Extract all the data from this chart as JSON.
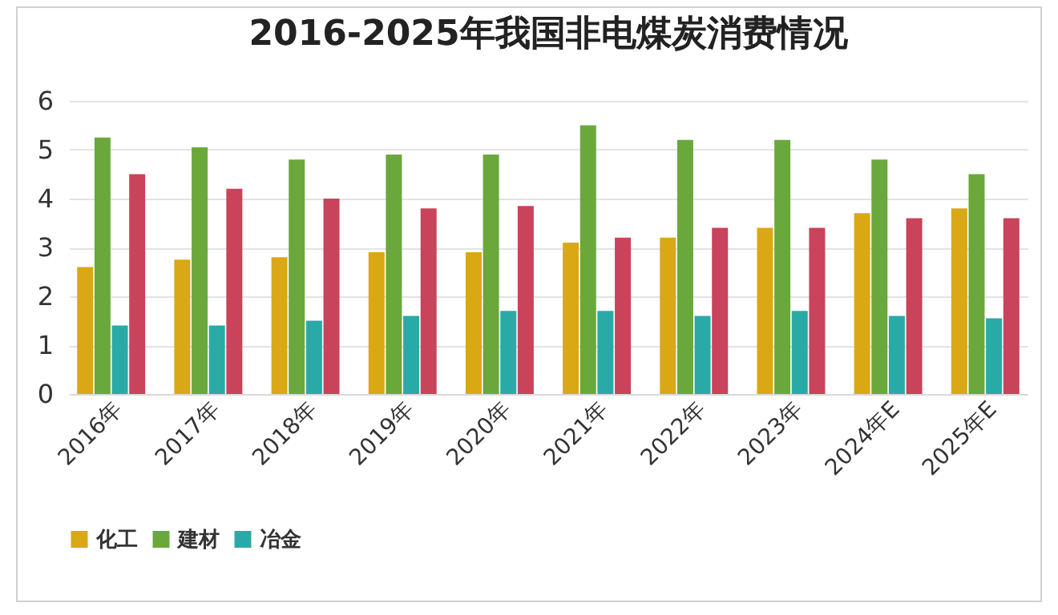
{
  "chart_data": {
    "type": "bar",
    "title": "2016-2025年我国非电煤炭消费情况",
    "categories": [
      "2016年",
      "2017年",
      "2018年",
      "2019年",
      "2020年",
      "2021年",
      "2022年",
      "2023年",
      "2024年E",
      "2025年E"
    ],
    "series": [
      {
        "name": "化工",
        "color": "#d9a814",
        "values": [
          2.6,
          2.75,
          2.8,
          2.9,
          2.9,
          3.1,
          3.2,
          3.4,
          3.7,
          3.8
        ]
      },
      {
        "name": "建材",
        "color": "#6aa83c",
        "values": [
          5.25,
          5.05,
          4.8,
          4.9,
          4.9,
          5.5,
          5.2,
          5.2,
          4.8,
          4.5
        ]
      },
      {
        "name": "冶金",
        "color": "#2aaaa6",
        "values": [
          1.4,
          1.4,
          1.5,
          1.6,
          1.7,
          1.7,
          1.6,
          1.7,
          1.6,
          1.55
        ]
      },
      {
        "color": "#c9435a",
        "values": [
          4.5,
          4.2,
          4.0,
          3.8,
          3.85,
          3.2,
          3.4,
          3.4,
          3.6,
          3.6
        ]
      }
    ],
    "ylim": [
      0,
      6
    ],
    "yticks": [
      0,
      1,
      2,
      3,
      4,
      5,
      6
    ],
    "grid": "y",
    "legend": "bottom"
  }
}
